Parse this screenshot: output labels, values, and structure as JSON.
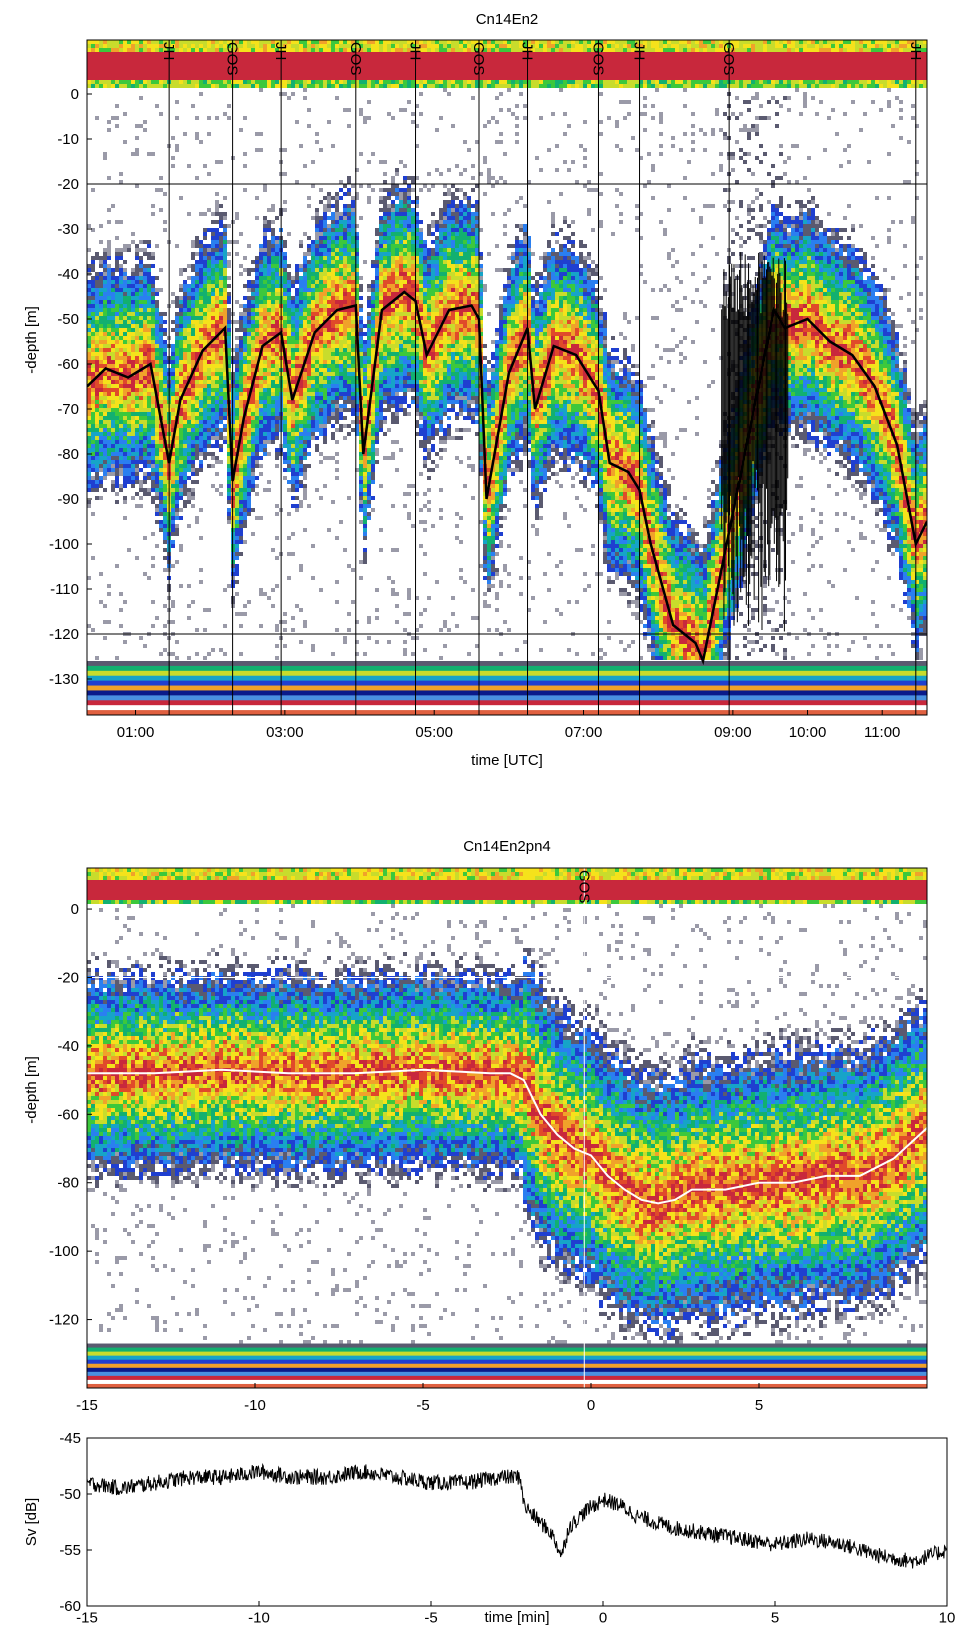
{
  "colors": {
    "scale": [
      "#ffffff",
      "#9a9aa8",
      "#5a5a70",
      "#1f3fd0",
      "#2a7ff0",
      "#16a4c8",
      "#12b070",
      "#3cc83c",
      "#c8dc2c",
      "#f5e21b",
      "#f0a22a",
      "#e04a2a",
      "#c8283c"
    ],
    "surface_band": "#c8283c",
    "trace": "#000000",
    "trace_white": "#ffffff"
  },
  "chart_data": [
    {
      "type": "heatmap",
      "title": "Cn14En2",
      "xlabel": "time [UTC]",
      "ylabel": "-depth [m]",
      "x_ticks": [
        "01:00",
        "03:00",
        "05:00",
        "07:00",
        "09:00",
        "10:00",
        "11:00"
      ],
      "x_tick_hours": [
        1,
        3,
        5,
        7,
        9,
        10,
        11
      ],
      "xlim_hours": [
        0.35,
        11.6
      ],
      "y_ticks": [
        0,
        -10,
        -20,
        -30,
        -40,
        -50,
        -60,
        -70,
        -80,
        -90,
        -100,
        -110,
        -120,
        -130
      ],
      "ylim": [
        -138,
        12
      ],
      "hlines": [
        -20,
        -120
      ],
      "events": [
        {
          "label": "JH",
          "hour": 1.45
        },
        {
          "label": "GOS",
          "hour": 2.3
        },
        {
          "label": "JH",
          "hour": 2.95
        },
        {
          "label": "GOS",
          "hour": 3.95
        },
        {
          "label": "JH",
          "hour": 4.75
        },
        {
          "label": "GOS",
          "hour": 5.6
        },
        {
          "label": "JH",
          "hour": 6.25
        },
        {
          "label": "GOS",
          "hour": 7.2
        },
        {
          "label": "JH",
          "hour": 7.75
        },
        {
          "label": "GOS",
          "hour": 8.95
        },
        {
          "label": "JH",
          "hour": 11.45
        }
      ],
      "trace": {
        "hour": [
          0.35,
          0.6,
          0.9,
          1.2,
          1.45,
          1.6,
          1.9,
          2.2,
          2.3,
          2.45,
          2.7,
          2.95,
          3.1,
          3.4,
          3.7,
          3.95,
          4.05,
          4.3,
          4.6,
          4.75,
          4.9,
          5.2,
          5.5,
          5.6,
          5.7,
          6.0,
          6.25,
          6.35,
          6.6,
          6.9,
          7.2,
          7.35,
          7.6,
          7.75,
          7.9,
          8.2,
          8.5,
          8.6,
          9.55,
          9.7,
          10.0,
          10.3,
          10.6,
          10.9,
          11.2,
          11.45,
          11.6
        ],
        "depth": [
          -65,
          -61,
          -63,
          -60,
          -82,
          -68,
          -57,
          -52,
          -86,
          -72,
          -56,
          -53,
          -68,
          -53,
          -48,
          -47,
          -80,
          -48,
          -44,
          -46,
          -58,
          -48,
          -47,
          -50,
          -90,
          -62,
          -52,
          -70,
          -56,
          -58,
          -66,
          -82,
          -84,
          -88,
          -100,
          -118,
          -122,
          -126,
          -48,
          -52,
          -50,
          -55,
          -58,
          -65,
          -78,
          -100,
          -95
        ]
      },
      "noise_segment_hours": [
        8.85,
        9.75
      ]
    },
    {
      "type": "heatmap",
      "title": "Cn14En2pn4",
      "xlabel": "",
      "ylabel": "-depth [m]",
      "x_ticks": [
        "-15",
        "-10",
        "-5",
        "0",
        "5"
      ],
      "x_tick_values": [
        -15,
        -10,
        -5,
        0,
        5
      ],
      "xlim": [
        -15,
        10
      ],
      "y_ticks": [
        0,
        -20,
        -40,
        -60,
        -80,
        -100,
        -120
      ],
      "ylim": [
        -140,
        12
      ],
      "hlines": [
        -20
      ],
      "events": [
        {
          "label": "GOS",
          "x": -0.2
        }
      ],
      "trace": {
        "x": [
          -15,
          -13,
          -11,
          -9,
          -7,
          -5,
          -3,
          -2.4,
          -2,
          -1.5,
          -1,
          -0.5,
          0,
          0.5,
          1,
          1.5,
          2,
          2.5,
          3,
          4,
          5,
          6,
          7,
          8,
          9,
          10
        ],
        "depth": [
          -48,
          -48,
          -47,
          -48,
          -48,
          -47,
          -48,
          -48,
          -50,
          -60,
          -66,
          -70,
          -72,
          -78,
          -82,
          -85,
          -86,
          -85,
          -82,
          -82,
          -80,
          -80,
          -78,
          -78,
          -73,
          -64
        ]
      }
    },
    {
      "type": "line",
      "title": "",
      "xlabel": "time [min]",
      "ylabel": "Sv [dB]",
      "x_ticks": [
        "-15",
        "-10",
        "-5",
        "0",
        "5",
        "10"
      ],
      "y_ticks": [
        "-45",
        "-50",
        "-55",
        "-60"
      ],
      "xlim": [
        -15,
        10
      ],
      "ylim": [
        -60,
        -45
      ],
      "x": [
        -15,
        -14,
        -13,
        -12,
        -11,
        -10,
        -9,
        -8,
        -7,
        -6,
        -5,
        -4,
        -3,
        -2.4,
        -2.3,
        -2,
        -1.5,
        -1.2,
        -1,
        -0.5,
        0,
        0.5,
        1,
        2,
        3,
        4,
        5,
        6,
        7,
        8,
        9,
        10
      ],
      "values": [
        -49,
        -49.5,
        -49,
        -48.5,
        -48.5,
        -48,
        -48.5,
        -48.5,
        -48,
        -48.5,
        -49,
        -49,
        -48.5,
        -48.5,
        -51,
        -52,
        -53.5,
        -55.5,
        -53,
        -51.5,
        -50.5,
        -51,
        -52,
        -53,
        -53.5,
        -54,
        -54.5,
        -54,
        -54.5,
        -55.5,
        -56,
        -55
      ]
    }
  ]
}
